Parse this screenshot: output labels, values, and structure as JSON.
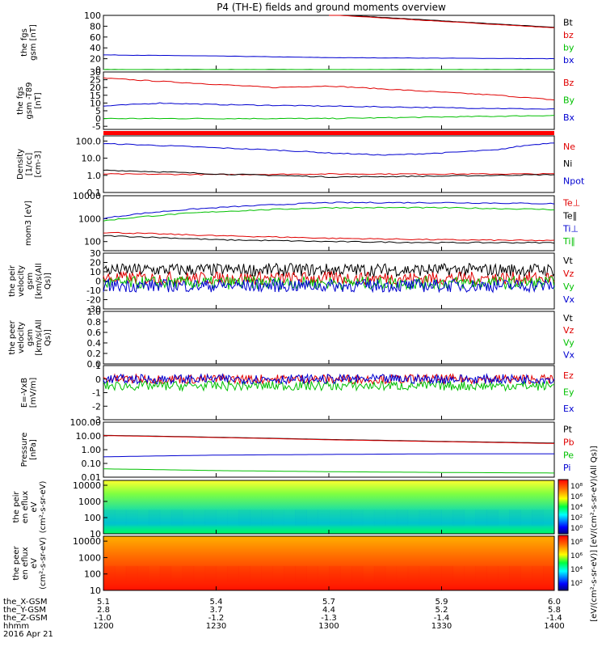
{
  "title": "P4 (TH-E) fields and ground moments overview",
  "footer": {
    "row_labels": [
      "the_X-GSM",
      "the_Y-GSM",
      "the_Z-GSM",
      "hhmm",
      "2016 Apr 21"
    ],
    "columns": [
      {
        "x": "5.1",
        "y": "2.8",
        "z": "-1.0",
        "t": "1200"
      },
      {
        "x": "5.4",
        "y": "3.7",
        "z": "-1.2",
        "t": "1230"
      },
      {
        "x": "5.7",
        "y": "4.4",
        "z": "-1.3",
        "t": "1300"
      },
      {
        "x": "5.9",
        "y": "5.2",
        "z": "-1.4",
        "t": "1330"
      },
      {
        "x": "6.0",
        "y": "5.8",
        "z": "-1.4",
        "t": "1400"
      }
    ]
  },
  "colorbar": {
    "label": "[eV/(cm²-s-sr-eV)] [eV/(cm²-s-sr-eV)(All Qs)]",
    "upper_ticks": [
      "10⁸",
      "10⁶",
      "10⁴",
      "10²",
      "10⁰"
    ],
    "lower_ticks": [
      "10⁸",
      "10⁶",
      "10⁴",
      "10²"
    ]
  },
  "chart_data": {
    "type": "line",
    "x_range": [
      1200,
      1400
    ],
    "x_ticks": [
      1200,
      1230,
      1300,
      1330,
      1400
    ],
    "panels": [
      {
        "id": "fgs-gsm",
        "ylabel": "the fgs gsm [nT]",
        "ylim": [
          0,
          100
        ],
        "yticks": [
          "0",
          "20",
          "40",
          "60",
          "80",
          "100"
        ],
        "series": [
          {
            "name": "Bt",
            "color": "#000000",
            "x": [
              1300,
              1330,
              1400
            ],
            "y": [
              102,
              90,
              78
            ]
          },
          {
            "name": "bz",
            "color": "#e00000",
            "x": [
              1300,
              1330,
              1400
            ],
            "y": [
              101,
              89,
              77
            ]
          },
          {
            "name": "by",
            "color": "#00c000",
            "x": [
              1200,
              1300,
              1400
            ],
            "y": [
              0,
              0,
              0
            ]
          },
          {
            "name": "bx",
            "color": "#0000d0",
            "x": [
              1200,
              1230,
              1300,
              1330,
              1400
            ],
            "y": [
              27,
              25,
              22,
              21,
              20
            ]
          }
        ]
      },
      {
        "id": "fgs-gsm-t89",
        "ylabel": "the fgs gsm -T89 [nT]",
        "ylim": [
          -7,
          30
        ],
        "yticks": [
          "-5",
          "0",
          "5",
          "10",
          "15",
          "20",
          "25",
          "30"
        ],
        "series": [
          {
            "name": "Bz",
            "color": "#e00000",
            "x": [
              1200,
              1215,
              1230,
              1245,
              1300,
              1315,
              1330,
              1345,
              1400
            ],
            "y": [
              26,
              24,
              22,
              20,
              21,
              19,
              17,
              15,
              12
            ]
          },
          {
            "name": "By",
            "color": "#00c000",
            "x": [
              1200,
              1230,
              1300,
              1330,
              1400
            ],
            "y": [
              0,
              0,
              0,
              1,
              2
            ]
          },
          {
            "name": "Bx",
            "color": "#0000d0",
            "x": [
              1200,
              1215,
              1230,
              1300,
              1330,
              1400
            ],
            "y": [
              8,
              10,
              9,
              8,
              7,
              6
            ]
          }
        ]
      },
      {
        "id": "density",
        "ylabel": "Density [1/cc] [cm-3]",
        "scale": "log",
        "ylim": [
          0.1,
          200
        ],
        "yticks": [
          "0.1",
          "1.0",
          "10.0",
          "100.0"
        ],
        "series": [
          {
            "name": "Ne",
            "color": "#e00000",
            "x": [
              1200,
              1230,
              1300,
              1330,
              1400
            ],
            "y": [
              1.2,
              1.1,
              1.2,
              1.2,
              1.2
            ]
          },
          {
            "name": "Ni",
            "color": "#000000",
            "x": [
              1200,
              1230,
              1300,
              1330,
              1400
            ],
            "y": [
              2.0,
              1.2,
              0.8,
              0.9,
              1.1
            ]
          },
          {
            "name": "Npot",
            "color": "#0000d0",
            "x": [
              1200,
              1230,
              1300,
              1315,
              1330,
              1345,
              1400
            ],
            "y": [
              70,
              40,
              20,
              15,
              20,
              30,
              80
            ]
          }
        ]
      },
      {
        "id": "temperature",
        "ylabel": "mom3 [eV]",
        "scale": "log",
        "ylim": [
          40,
          10000
        ],
        "yticks": [
          "100",
          "1000",
          "10000"
        ],
        "series": [
          {
            "name": "Te⊥",
            "color": "#e00000",
            "x": [
              1200,
              1230,
              1300,
              1330,
              1400
            ],
            "y": [
              250,
              180,
              140,
              120,
              110
            ]
          },
          {
            "name": "Te∥",
            "color": "#000000",
            "x": [
              1200,
              1230,
              1300,
              1330,
              1400
            ],
            "y": [
              180,
              120,
              100,
              90,
              90
            ]
          },
          {
            "name": "Ti⊥",
            "color": "#0000d0",
            "x": [
              1200,
              1230,
              1300,
              1330,
              1400
            ],
            "y": [
              1000,
              3000,
              5000,
              5000,
              4500
            ]
          },
          {
            "name": "Ti∥",
            "color": "#00c000",
            "x": [
              1200,
              1230,
              1300,
              1330,
              1400
            ],
            "y": [
              800,
              2000,
              3000,
              3000,
              2500
            ]
          }
        ]
      },
      {
        "id": "peir-velocity",
        "ylabel": "the peir velocity gsm [km/s(All Qs)]",
        "ylim": [
          -30,
          30
        ],
        "yticks": [
          "-30",
          "-20",
          "-10",
          "0",
          "10",
          "20",
          "30"
        ],
        "series": [
          {
            "name": "Vt",
            "color": "#000000",
            "x": [
              1200,
              1400
            ],
            "y": [
              12,
              12
            ]
          },
          {
            "name": "Vz",
            "color": "#e00000",
            "x": [
              1200,
              1400
            ],
            "y": [
              3,
              3
            ]
          },
          {
            "name": "Vy",
            "color": "#00c000",
            "x": [
              1200,
              1400
            ],
            "y": [
              -2,
              -2
            ]
          },
          {
            "name": "Vx",
            "color": "#0000d0",
            "x": [
              1200,
              1400
            ],
            "y": [
              -5,
              -5
            ]
          }
        ]
      },
      {
        "id": "peer-velocity",
        "ylabel": "the peer velocity gsm [km/s(All Qs)]",
        "ylim": [
          0,
          1
        ],
        "yticks": [
          "0.0",
          "0.2",
          "0.4",
          "0.6",
          "0.8",
          "1.0"
        ],
        "series": [
          {
            "name": "Vt",
            "color": "#000000",
            "x": [],
            "y": []
          },
          {
            "name": "Vz",
            "color": "#e00000",
            "x": [],
            "y": []
          },
          {
            "name": "Vy",
            "color": "#00c000",
            "x": [],
            "y": []
          },
          {
            "name": "Vx",
            "color": "#0000d0",
            "x": [],
            "y": []
          }
        ]
      },
      {
        "id": "efield",
        "ylabel": "E=-VxB [mV/m]",
        "ylim": [
          -3,
          1
        ],
        "yticks": [
          "-3",
          "-2",
          "-1",
          "0",
          "1"
        ],
        "series": [
          {
            "name": "Ez",
            "color": "#e00000",
            "x": [
              1200,
              1400
            ],
            "y": [
              0,
              0
            ]
          },
          {
            "name": "Ey",
            "color": "#00c000",
            "x": [
              1200,
              1400
            ],
            "y": [
              -0.5,
              -0.5
            ]
          },
          {
            "name": "Ex",
            "color": "#0000d0",
            "x": [
              1200,
              1400
            ],
            "y": [
              0,
              0
            ]
          }
        ]
      },
      {
        "id": "pressure",
        "ylabel": "Pressure [nPa]",
        "scale": "log",
        "ylim": [
          0.01,
          100
        ],
        "yticks": [
          "0.01",
          "0.10",
          "1.00",
          "10.00",
          "100.00"
        ],
        "series": [
          {
            "name": "Pt",
            "color": "#000000",
            "x": [
              1200,
              1230,
              1300,
              1330,
              1400
            ],
            "y": [
              11,
              8,
              5.5,
              4,
              3
            ]
          },
          {
            "name": "Pb",
            "color": "#e00000",
            "x": [
              1200,
              1230,
              1300,
              1330,
              1400
            ],
            "y": [
              10.5,
              7.6,
              5.2,
              3.8,
              2.8
            ]
          },
          {
            "name": "Pe",
            "color": "#00c000",
            "x": [
              1200,
              1230,
              1300,
              1330,
              1400
            ],
            "y": [
              0.04,
              0.03,
              0.025,
              0.022,
              0.02
            ]
          },
          {
            "name": "Pi",
            "color": "#0000d0",
            "x": [
              1200,
              1230,
              1300,
              1330,
              1400
            ],
            "y": [
              0.3,
              0.4,
              0.45,
              0.5,
              0.5
            ]
          }
        ]
      },
      {
        "id": "peir-en-eflux",
        "type": "heatmap",
        "ylabel": "the peir en eflux eV (cm²-s-sr-eV)",
        "scale": "log",
        "ylim": [
          10,
          20000
        ],
        "yticks": [
          "10",
          "100",
          "1000",
          "10000"
        ],
        "description_scheme": "jet"
      },
      {
        "id": "peer-en-eflux",
        "type": "heatmap",
        "ylabel": "the peer en eflux eV (cm²-s-sr-eV)",
        "scale": "log",
        "ylim": [
          10,
          20000
        ],
        "yticks": [
          "10",
          "100",
          "1000",
          "10000"
        ],
        "description_scheme": "jet"
      }
    ]
  }
}
